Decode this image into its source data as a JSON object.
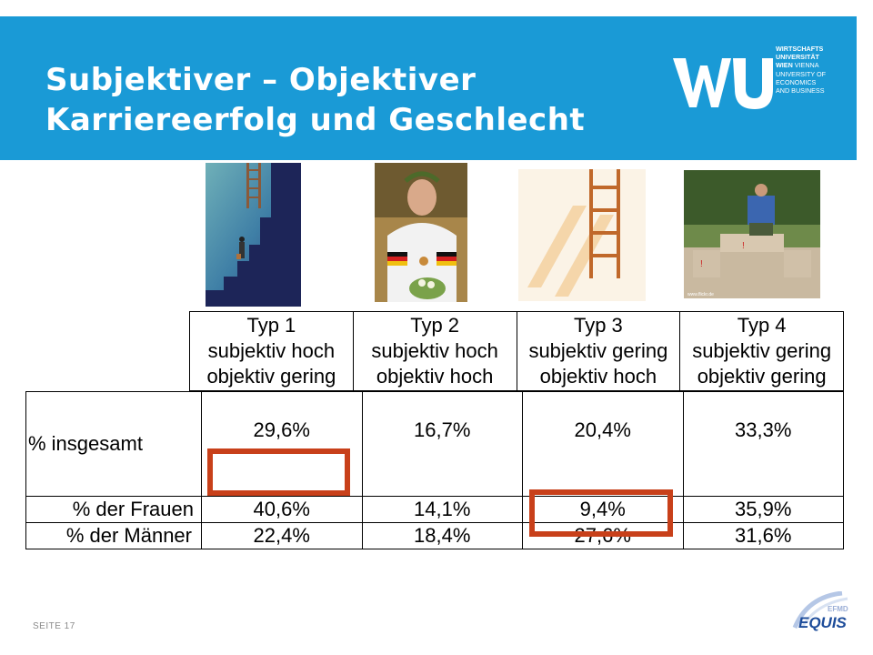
{
  "header": {
    "title_line1": "Subjektiver – Objektiver",
    "title_line2": "Karriereerfolg und Geschlecht",
    "bg_color": "#1a9ad6"
  },
  "logo": {
    "mark": "WU",
    "lines": [
      "WIRTSCHAFTS",
      "UNIVERSITÄT",
      "WIEN",
      "VIENNA",
      "UNIVERSITY OF",
      "ECONOMICS",
      "AND BUSINESS"
    ]
  },
  "photos": [
    {
      "name": "ladder-climber-painting"
    },
    {
      "name": "cyclist-with-medal"
    },
    {
      "name": "ladder-shadow"
    },
    {
      "name": "man-sitting-on-podium",
      "caption": "www.flickr.de"
    }
  ],
  "table": {
    "columns": [
      {
        "type": "Typ 1",
        "line2": "subjektiv hoch",
        "line3": "objektiv gering"
      },
      {
        "type": "Typ 2",
        "line2": "subjektiv hoch",
        "line3": "objektiv hoch"
      },
      {
        "type": "Typ 3",
        "line2": "subjektiv gering",
        "line3": "objektiv hoch"
      },
      {
        "type": "Typ 4",
        "line2": "subjektiv gering",
        "line3": "objektiv gering"
      }
    ],
    "rows": [
      {
        "label": "% insgesamt",
        "values": [
          "29,6%",
          "16,7%",
          "20,4%",
          "33,3%"
        ]
      },
      {
        "label": "% der Frauen",
        "values": [
          "40,6%",
          "14,1%",
          "9,4%",
          "35,9%"
        ]
      },
      {
        "label": "% der Männer",
        "values": [
          "22,4%",
          "18,4%",
          "27,6%",
          "31,6%"
        ]
      }
    ],
    "highlighted_cells": [
      "% der Frauen / Typ 1",
      "% der Männer / Typ 3"
    ],
    "highlight_color": "#c8401a"
  },
  "footer": {
    "page_label": "SEITE 17",
    "accreditation": "EQUIS",
    "accreditation_top": "EFMD"
  }
}
